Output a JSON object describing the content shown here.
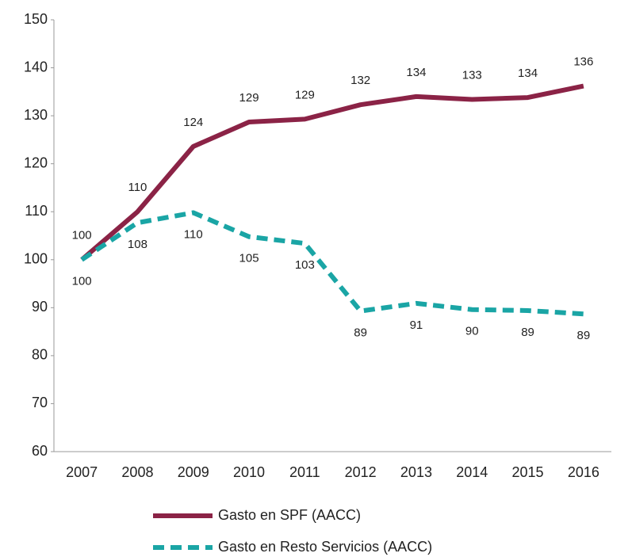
{
  "chart_data": {
    "type": "line",
    "categories": [
      "2007",
      "2008",
      "2009",
      "2010",
      "2011",
      "2012",
      "2013",
      "2014",
      "2015",
      "2016"
    ],
    "series": [
      {
        "name": "Gasto en SPF (AACC)",
        "color": "#8b2346",
        "values": [
          100,
          110,
          123.6,
          128.7,
          129.3,
          132.3,
          134,
          133.4,
          133.8,
          136.2
        ],
        "value_labels": [
          "100",
          "110",
          "124",
          "129",
          "129",
          "132",
          "134",
          "133",
          "134",
          "136"
        ]
      },
      {
        "name": "Gasto en Resto Servicios (AACC)",
        "color": "#1aa5a5",
        "dashed": true,
        "values": [
          100,
          107.7,
          109.8,
          104.8,
          103.4,
          89.3,
          90.9,
          89.6,
          89.4,
          88.7
        ],
        "value_labels": [
          "100",
          "108",
          "110",
          "105",
          "103",
          "89",
          "91",
          "90",
          "89",
          "89"
        ]
      }
    ],
    "ylim": [
      60,
      150
    ],
    "yticks": [
      60,
      70,
      80,
      90,
      100,
      110,
      120,
      130,
      140,
      150
    ],
    "grid": false
  }
}
